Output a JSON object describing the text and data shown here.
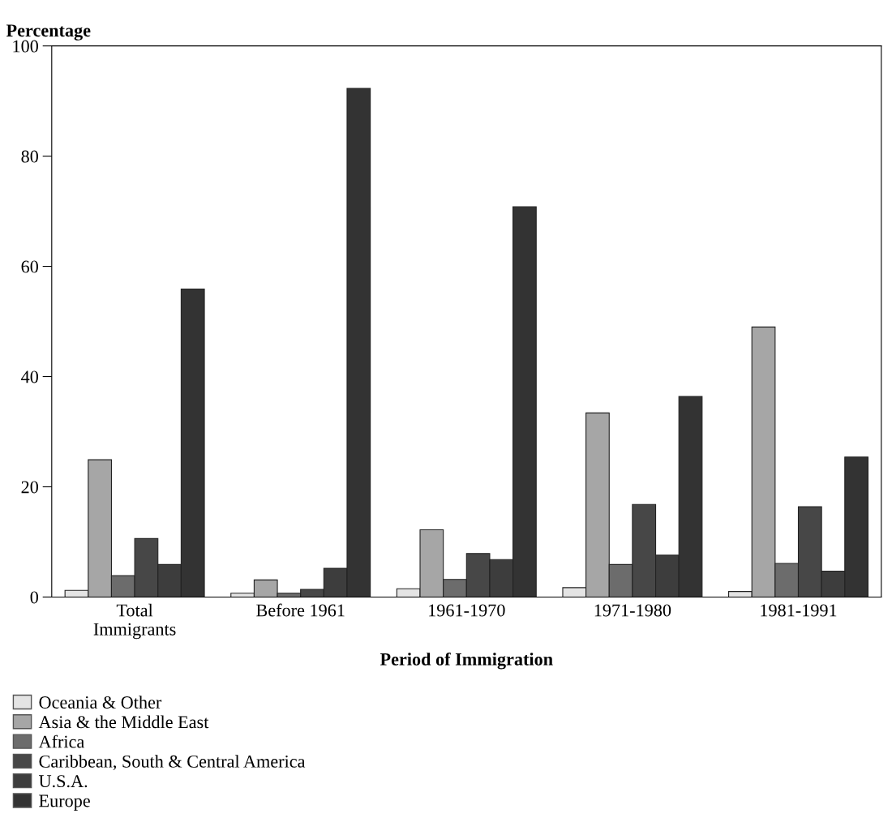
{
  "chart_data": {
    "type": "bar",
    "xlabel": "Period of Immigration",
    "ylabel": "Percentage",
    "categories": [
      "Total\nImmigrants",
      "Before 1961",
      "1961-1970",
      "1971-1980",
      "1981-1991"
    ],
    "series": [
      {
        "name": "Oceania & Other",
        "color": "#e4e4e4",
        "values": [
          1.2,
          0.7,
          1.5,
          1.7,
          1.0
        ]
      },
      {
        "name": "Asia & the Middle East",
        "color": "#a6a6a6",
        "values": [
          24.9,
          3.1,
          12.2,
          33.4,
          49.0
        ]
      },
      {
        "name": "Africa",
        "color": "#6c6c6c",
        "values": [
          3.9,
          0.7,
          3.2,
          5.9,
          6.1
        ]
      },
      {
        "name": "Caribbean, South & Central America",
        "color": "#474747",
        "values": [
          10.6,
          1.4,
          7.9,
          16.8,
          16.4
        ]
      },
      {
        "name": "U.S.A.",
        "color": "#3d3d3d",
        "values": [
          5.9,
          5.2,
          6.8,
          7.6,
          4.7
        ]
      },
      {
        "name": "Europe",
        "color": "#333333",
        "values": [
          55.9,
          92.3,
          70.8,
          36.4,
          25.4
        ]
      }
    ],
    "ylim": [
      0,
      100
    ],
    "yticks": [
      0,
      20,
      40,
      60,
      80,
      100
    ],
    "grid": false,
    "legend": "bottom left"
  }
}
